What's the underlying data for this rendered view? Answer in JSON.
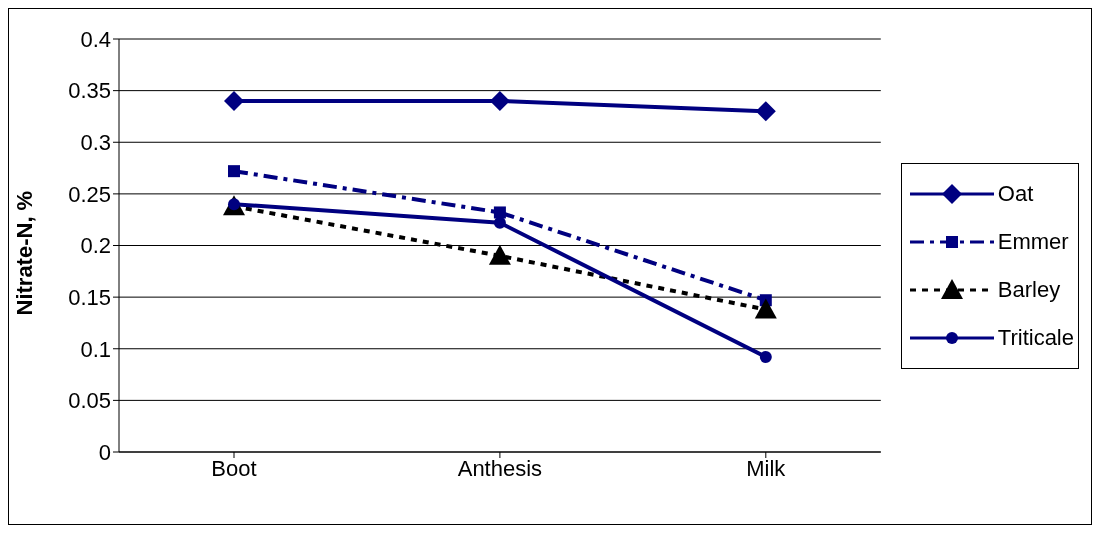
{
  "chart_data": {
    "type": "line",
    "ylabel": "Nitrate-N, %",
    "categories": [
      "Boot",
      "Anthesis",
      "Milk"
    ],
    "series": [
      {
        "name": "Oat",
        "color": "#000080",
        "values": [
          0.34,
          0.34,
          0.33
        ],
        "marker": "diamond",
        "line_style": "solid"
      },
      {
        "name": "Emmer",
        "color": "#000080",
        "values": [
          0.272,
          0.232,
          0.147
        ],
        "marker": "square",
        "line_style": "dashed"
      },
      {
        "name": "Barley",
        "color": "#000000",
        "values": [
          0.238,
          0.19,
          0.138
        ],
        "marker": "triangle",
        "line_style": "dotted"
      },
      {
        "name": "Triticale",
        "color": "#000080",
        "values": [
          0.24,
          0.222,
          0.092
        ],
        "marker": "circle",
        "line_style": "solid"
      }
    ],
    "ylim": [
      0,
      0.4
    ],
    "yticks": [
      0,
      0.05,
      0.1,
      0.15,
      0.2,
      0.25,
      0.3,
      0.35,
      0.4
    ],
    "grid": "y",
    "legend": "right"
  }
}
